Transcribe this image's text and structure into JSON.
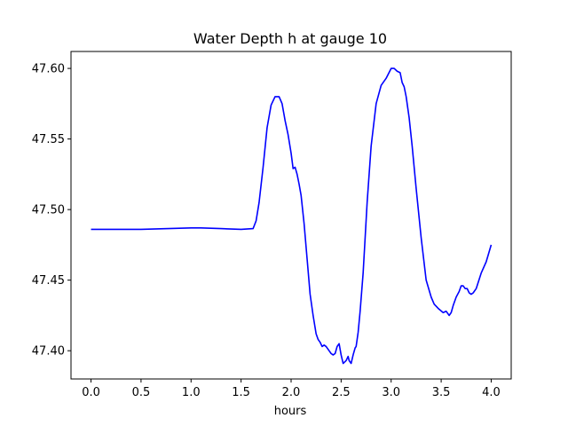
{
  "chart_data": {
    "type": "line",
    "title": "Water Depth h at gauge 10",
    "xlabel": "hours",
    "ylabel": "",
    "xlim": [
      -0.2,
      4.2
    ],
    "ylim": [
      47.38,
      47.612
    ],
    "xticks": [
      0.0,
      0.5,
      1.0,
      1.5,
      2.0,
      2.5,
      3.0,
      3.5,
      4.0
    ],
    "xtick_labels": [
      "0.0",
      "0.5",
      "1.0",
      "1.5",
      "2.0",
      "2.5",
      "3.0",
      "3.5",
      "4.0"
    ],
    "yticks": [
      47.4,
      47.45,
      47.5,
      47.55,
      47.6
    ],
    "ytick_labels": [
      "47.40",
      "47.45",
      "47.50",
      "47.55",
      "47.60"
    ],
    "grid": false,
    "series": [
      {
        "name": "",
        "color": "#0000ff",
        "x": [
          0.0,
          0.5,
          1.0,
          1.1,
          1.3,
          1.5,
          1.62,
          1.65,
          1.68,
          1.72,
          1.76,
          1.8,
          1.84,
          1.88,
          1.91,
          1.94,
          1.97,
          2.0,
          2.02,
          2.04,
          2.06,
          2.08,
          2.1,
          2.13,
          2.16,
          2.19,
          2.22,
          2.25,
          2.27,
          2.29,
          2.31,
          2.33,
          2.35,
          2.38,
          2.4,
          2.42,
          2.44,
          2.46,
          2.48,
          2.5,
          2.52,
          2.55,
          2.57,
          2.58,
          2.6,
          2.62,
          2.64,
          2.65,
          2.67,
          2.69,
          2.72,
          2.74,
          2.76,
          2.8,
          2.85,
          2.9,
          2.95,
          3.0,
          3.03,
          3.06,
          3.09,
          3.11,
          3.13,
          3.15,
          3.18,
          3.21,
          3.25,
          3.3,
          3.35,
          3.4,
          3.43,
          3.47,
          3.52,
          3.55,
          3.58,
          3.6,
          3.62,
          3.65,
          3.68,
          3.7,
          3.72,
          3.74,
          3.76,
          3.78,
          3.8,
          3.82,
          3.85,
          3.9,
          3.95,
          4.0
        ],
        "y": [
          47.486,
          47.486,
          47.487,
          47.487,
          47.4865,
          47.486,
          47.4865,
          47.492,
          47.505,
          47.53,
          47.558,
          47.574,
          47.58,
          47.58,
          47.575,
          47.563,
          47.553,
          47.54,
          47.529,
          47.53,
          47.525,
          47.518,
          47.51,
          47.49,
          47.465,
          47.44,
          47.425,
          47.412,
          47.408,
          47.406,
          47.403,
          47.404,
          47.403,
          47.4,
          47.398,
          47.397,
          47.398,
          47.403,
          47.405,
          47.397,
          47.391,
          47.393,
          47.396,
          47.393,
          47.391,
          47.397,
          47.402,
          47.403,
          47.413,
          47.428,
          47.455,
          47.48,
          47.505,
          47.545,
          47.575,
          47.588,
          47.593,
          47.6,
          47.6,
          47.598,
          47.597,
          47.59,
          47.587,
          47.58,
          47.565,
          47.545,
          47.515,
          47.48,
          47.45,
          47.438,
          47.433,
          47.43,
          47.427,
          47.428,
          47.425,
          47.427,
          47.432,
          47.438,
          47.442,
          47.446,
          47.446,
          47.444,
          47.444,
          47.441,
          47.44,
          47.441,
          47.444,
          47.455,
          47.463,
          47.475
        ]
      }
    ]
  }
}
